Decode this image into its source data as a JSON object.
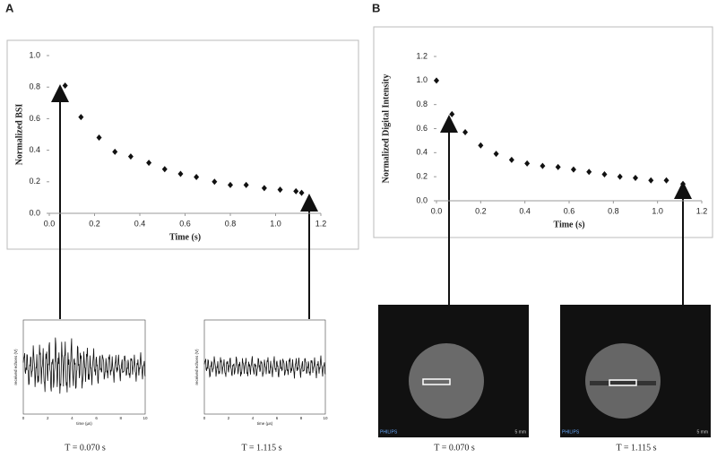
{
  "panel_labels": [
    "A",
    "B"
  ],
  "chart_data": [
    {
      "type": "scatter",
      "xlabel": "Time (s)",
      "ylabel": "Normalized BSI",
      "color": "#111111",
      "x": [
        0.07,
        0.14,
        0.22,
        0.29,
        0.36,
        0.44,
        0.51,
        0.58,
        0.65,
        0.73,
        0.8,
        0.87,
        0.95,
        1.02,
        1.09,
        1.115
      ],
      "values": [
        0.81,
        0.61,
        0.48,
        0.39,
        0.36,
        0.32,
        0.28,
        0.25,
        0.23,
        0.2,
        0.18,
        0.18,
        0.16,
        0.15,
        0.14,
        0.13
      ],
      "xlim": [
        0,
        1.2
      ],
      "ylim": [
        0,
        1
      ],
      "xticks": [
        {
          "value": 0,
          "label": "0.0"
        },
        0.2,
        0.4,
        0.6,
        0.8,
        {
          "value": 1,
          "label": "1.0"
        },
        1.2
      ],
      "yticks": [
        {
          "value": 0,
          "label": "0.0"
        },
        0.2,
        0.4,
        0.6,
        0.8,
        {
          "value": 1,
          "label": "1.0"
        }
      ]
    },
    {
      "type": "scatter",
      "xlabel": "Time (s)",
      "ylabel": "Normalized Digital Intensity",
      "color": "#111111",
      "x": [
        0,
        0.07,
        0.13,
        0.2,
        0.27,
        0.34,
        0.41,
        0.48,
        0.55,
        0.62,
        0.69,
        0.76,
        0.83,
        0.9,
        0.97,
        1.04,
        1.115
      ],
      "values": [
        1.0,
        0.72,
        0.57,
        0.46,
        0.39,
        0.34,
        0.31,
        0.29,
        0.28,
        0.26,
        0.24,
        0.22,
        0.2,
        0.19,
        0.17,
        0.17,
        0.14
      ],
      "xlim": [
        0,
        1.2
      ],
      "ylim": [
        0,
        1.2
      ],
      "xticks": [
        {
          "value": 0,
          "label": "0.0"
        },
        0.2,
        0.4,
        0.6,
        0.8,
        {
          "value": 1,
          "label": "1.0"
        },
        1.2
      ],
      "yticks": [
        {
          "value": 0,
          "label": "0.0"
        },
        0.2,
        0.4,
        0.6,
        0.8,
        {
          "value": 1,
          "label": "1.0"
        },
        1.2
      ]
    }
  ],
  "waveforms": [
    {
      "ylabel": "received echoes (V)",
      "xlabel": "time (µs)",
      "xticks": [
        "0",
        "2",
        "4",
        "6",
        "8",
        "10"
      ]
    },
    {
      "ylabel": "received echoes (V)",
      "xlabel": "time (µs)",
      "xticks": [
        "0",
        "2",
        "4",
        "6",
        "8",
        "10"
      ]
    }
  ],
  "ultrasound": [
    {
      "brand": "PHILIPS",
      "scale": "5 mm"
    },
    {
      "brand": "PHILIPS",
      "scale": "5 mm"
    }
  ],
  "captions": [
    "T = 0.070 s",
    "T = 1.115 s",
    "T = 0.070 s",
    "T = 1.115 s"
  ]
}
